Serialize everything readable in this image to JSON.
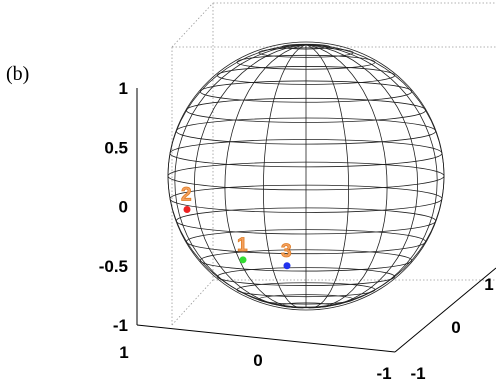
{
  "panel_label": "(b)",
  "chart_data": {
    "type": "scatter",
    "subtype": "3d-unit-sphere",
    "title": "",
    "grid": true,
    "axes": {
      "z_ticks": [
        "1",
        "0.5",
        "0",
        "-0.5",
        "-1"
      ],
      "x_ticks": [
        "1",
        "0",
        "-1"
      ],
      "y_ticks": [
        "-1",
        "0",
        "1"
      ],
      "zlim": [
        -1,
        1
      ],
      "xlim": [
        -1,
        1
      ],
      "ylim": [
        -1,
        1
      ]
    },
    "points": [
      {
        "label": "1",
        "color": "#33dd33",
        "z": -0.45
      },
      {
        "label": "2",
        "color": "#ee2222",
        "z": 0.0
      },
      {
        "label": "3",
        "color": "#2233ee",
        "z": -0.5
      }
    ],
    "label_color": "#f4a261"
  }
}
